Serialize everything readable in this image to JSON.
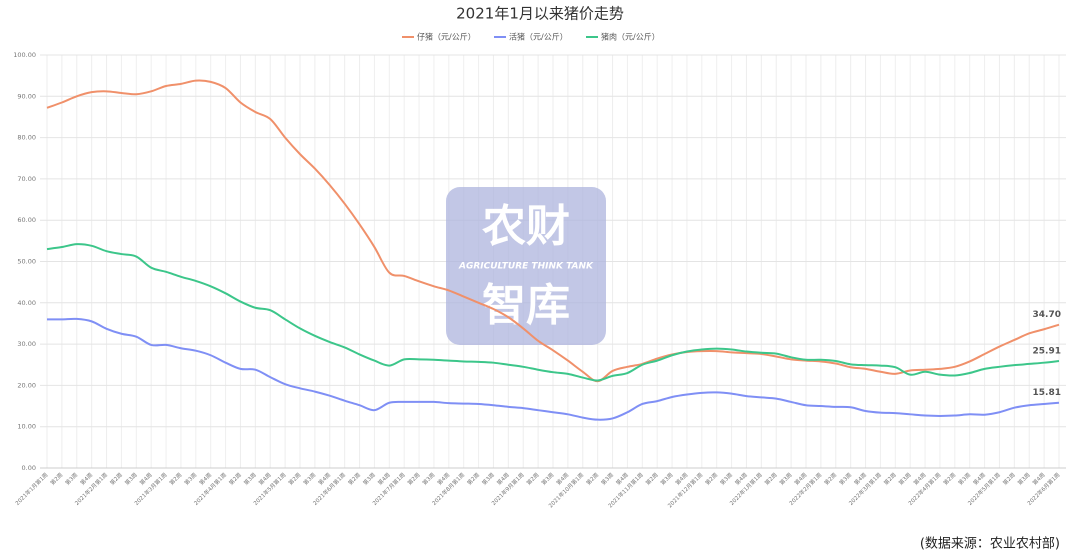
{
  "chart_data": {
    "type": "line",
    "title": "2021年1月以来猪价走势",
    "categories": [
      "2021年1月第1周",
      "第2周",
      "第3周",
      "第4周",
      "2021年2月第1周",
      "第2周",
      "第3周",
      "第4周",
      "2021年3月第1周",
      "第2周",
      "第3周",
      "第4周",
      "2021年4月第1周",
      "第2周",
      "第3周",
      "第4周",
      "2021年5月第1周",
      "第2周",
      "第3周",
      "第4周",
      "2021年6月第1周",
      "第2周",
      "第3周",
      "第4周",
      "2021年7月第1周",
      "第2周",
      "第3周",
      "第4周",
      "2021年8月第1周",
      "第2周",
      "第3周",
      "第4周",
      "2021年9月第1周",
      "第2周",
      "第3周",
      "第4周",
      "2021年10月第1周",
      "第2周",
      "第3周",
      "第4周",
      "2021年11月第1周",
      "第2周",
      "第3周",
      "第4周",
      "2021年12月第1周",
      "第2周",
      "第3周",
      "第4周",
      "2022年1月第1周",
      "第2周",
      "第3周",
      "第4周",
      "2022年2月第1周",
      "第2周",
      "第3周",
      "第4周",
      "2022年3月第1周",
      "第2周",
      "第3周",
      "第4周",
      "2022年4月第1周",
      "第2周",
      "第3周",
      "第4周",
      "2022年5月第1周",
      "第2周",
      "第3周",
      "第4周",
      "2022年6月第1周"
    ],
    "series": [
      {
        "name": "仔猪（元/公斤）",
        "color": "#f0906a",
        "values": [
          87.2,
          88.5,
          90,
          91,
          91.2,
          90.8,
          90.5,
          91.2,
          92.5,
          93,
          93.8,
          93.5,
          92,
          88.5,
          86.2,
          84.5,
          80,
          76,
          72.5,
          68.5,
          64,
          59,
          53.5,
          47.3,
          46.5,
          45.2,
          44,
          43,
          41.5,
          40,
          38.5,
          36.5,
          33.8,
          30.8,
          28.5,
          26,
          23.3,
          21,
          23.5,
          24.5,
          25.2,
          26.5,
          27.5,
          28.1,
          28.3,
          28.3,
          28,
          27.8,
          27.6,
          27,
          26.3,
          26,
          25.8,
          25.3,
          24.4,
          24,
          23.3,
          22.8,
          23.6,
          23.8,
          24,
          24.5,
          25.8,
          27.6,
          29.4,
          31,
          32.6,
          33.6,
          34.7
        ],
        "value_labels": [
          null,
          null,
          null,
          null,
          null,
          null,
          null,
          null,
          null,
          null,
          null,
          null,
          null,
          null,
          null,
          null,
          null,
          null,
          null,
          null,
          null,
          null,
          null,
          null,
          null,
          null,
          null,
          null,
          null,
          null,
          null,
          null,
          null,
          null,
          null,
          null,
          null,
          null,
          null,
          null,
          null,
          null,
          null,
          null,
          null,
          null,
          null,
          null,
          null,
          null,
          null,
          null,
          null,
          null,
          null,
          null,
          null,
          null,
          null,
          null,
          null,
          null,
          null,
          null,
          null,
          null,
          null,
          null,
          "34.70"
        ]
      },
      {
        "name": "活猪（元/公斤）",
        "color": "#7f8ff5",
        "values": [
          36,
          36,
          36.1,
          35.5,
          33.7,
          32.5,
          31.8,
          29.8,
          29.8,
          29,
          28.4,
          27.3,
          25.5,
          24,
          23.8,
          22,
          20.3,
          19.3,
          18.5,
          17.5,
          16.3,
          15.2,
          14,
          15.8,
          16,
          16,
          16,
          15.7,
          15.6,
          15.5,
          15.2,
          14.8,
          14.5,
          14,
          13.5,
          13,
          12.2,
          11.7,
          12,
          13.5,
          15.5,
          16.2,
          17.2,
          17.8,
          18.2,
          18.3,
          18,
          17.4,
          17.1,
          16.8,
          16,
          15.2,
          15,
          14.8,
          14.7,
          13.8,
          13.4,
          13.3,
          13,
          12.7,
          12.6,
          12.7,
          13,
          12.9,
          13.5,
          14.6,
          15.2,
          15.5,
          15.81
        ],
        "value_labels": [
          null,
          null,
          null,
          null,
          null,
          null,
          null,
          null,
          null,
          null,
          null,
          null,
          null,
          null,
          null,
          null,
          null,
          null,
          null,
          null,
          null,
          null,
          null,
          null,
          null,
          null,
          null,
          null,
          null,
          null,
          null,
          null,
          null,
          null,
          null,
          null,
          null,
          null,
          null,
          null,
          null,
          null,
          null,
          null,
          null,
          null,
          null,
          null,
          null,
          null,
          null,
          null,
          null,
          null,
          null,
          null,
          null,
          null,
          null,
          null,
          null,
          null,
          null,
          null,
          null,
          null,
          null,
          null,
          "15.81"
        ]
      },
      {
        "name": "猪肉（元/公斤）",
        "color": "#3cc68a",
        "values": [
          53,
          53.5,
          54.2,
          53.8,
          52.5,
          51.8,
          51.2,
          48.5,
          47.5,
          46.3,
          45.3,
          44,
          42.3,
          40.3,
          38.8,
          38.2,
          36,
          33.8,
          32,
          30.5,
          29.2,
          27.5,
          26,
          24.8,
          26.3,
          26.3,
          26.2,
          26,
          25.8,
          25.7,
          25.5,
          25,
          24.5,
          23.8,
          23.2,
          22.8,
          21.9,
          21.2,
          22.3,
          23,
          25,
          26,
          27.3,
          28.2,
          28.7,
          28.9,
          28.7,
          28.2,
          27.9,
          27.7,
          26.8,
          26.2,
          26.2,
          25.9,
          25.1,
          24.9,
          24.8,
          24.4,
          22.6,
          23.3,
          22.6,
          22.4,
          23,
          24,
          24.5,
          24.9,
          25.2,
          25.5,
          25.91
        ],
        "value_labels": [
          null,
          null,
          null,
          null,
          null,
          null,
          null,
          null,
          null,
          null,
          null,
          null,
          null,
          null,
          null,
          null,
          null,
          null,
          null,
          null,
          null,
          null,
          null,
          null,
          null,
          null,
          null,
          null,
          null,
          null,
          null,
          null,
          null,
          null,
          null,
          null,
          null,
          null,
          null,
          null,
          null,
          null,
          null,
          null,
          null,
          null,
          null,
          null,
          null,
          null,
          null,
          null,
          null,
          null,
          null,
          null,
          null,
          null,
          null,
          null,
          null,
          null,
          null,
          null,
          null,
          null,
          null,
          null,
          "25.91"
        ]
      }
    ],
    "ylim": [
      0,
      100
    ],
    "yticks": [
      {
        "value": 0,
        "label": "0.00"
      },
      {
        "value": 10,
        "label": "10.00"
      },
      {
        "value": 20,
        "label": "20.00"
      },
      {
        "value": 30,
        "label": "30.00"
      },
      {
        "value": 40,
        "label": "40.00"
      },
      {
        "value": 50,
        "label": "50.00"
      },
      {
        "value": 60,
        "label": "60.00"
      },
      {
        "value": 70,
        "label": "70.00"
      },
      {
        "value": 80,
        "label": "80.00"
      },
      {
        "value": 90,
        "label": "90.00"
      },
      {
        "value": 100,
        "label": "100.00"
      }
    ],
    "grid": true,
    "legend": "top",
    "watermark": {
      "line1": "农财",
      "line2": "AGRICULTURE THINK TANK",
      "line3": "智库"
    },
    "source": "(数据来源：农业农村部)"
  }
}
